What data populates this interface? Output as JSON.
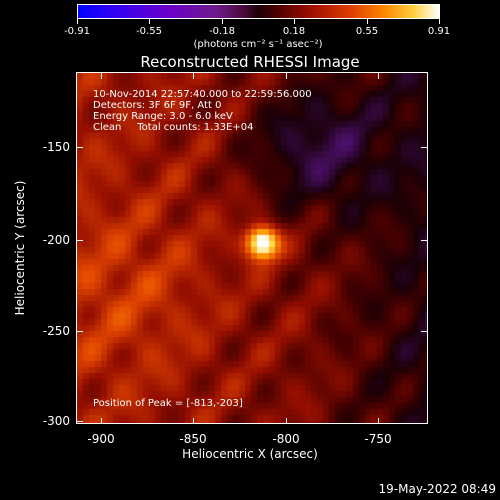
{
  "colorbar": {
    "ticks": [
      "-0.91",
      "-0.55",
      "-0.18",
      "0.18",
      "0.55",
      "0.91"
    ],
    "units": "(photons cm⁻² s⁻¹ asec⁻²)",
    "colors": {
      "min": "#0000ff",
      "mid": "#1a0008",
      "max": "#ffffff"
    }
  },
  "title": "Reconstructed RHESSI Image",
  "info": {
    "line1": "10-Nov-2014 22:57:40.000 to 22:59:56.000",
    "line2": "Detectors: 3F 6F 9F, Att 0",
    "line3": "Energy Range: 3.0 - 6.0 keV",
    "line4": "Clean     Total counts: 1.33E+04",
    "peak": "Position of Peak = [-813,-203]"
  },
  "axes": {
    "xlabel": "Heliocentric X (arcsec)",
    "ylabel": "Heliocentric Y (arcsec)",
    "xticks": [
      "-900",
      "-850",
      "-800",
      "-750"
    ],
    "yticks": [
      "-150",
      "-200",
      "-250",
      "-300"
    ]
  },
  "timestamp": "19-May-2022 08:49",
  "chart_data": {
    "type": "heatmap",
    "title": "Reconstructed RHESSI Image",
    "xlabel": "Heliocentric X (arcsec)",
    "ylabel": "Heliocentric Y (arcsec)",
    "xlim": [
      -915,
      -722
    ],
    "ylim": [
      -302,
      -110
    ],
    "color_range": [
      -0.91,
      0.91
    ],
    "peak": {
      "x": -813,
      "y": -203,
      "value": 0.91
    },
    "colormap": "blue-purple-black-red-yellow-white"
  }
}
